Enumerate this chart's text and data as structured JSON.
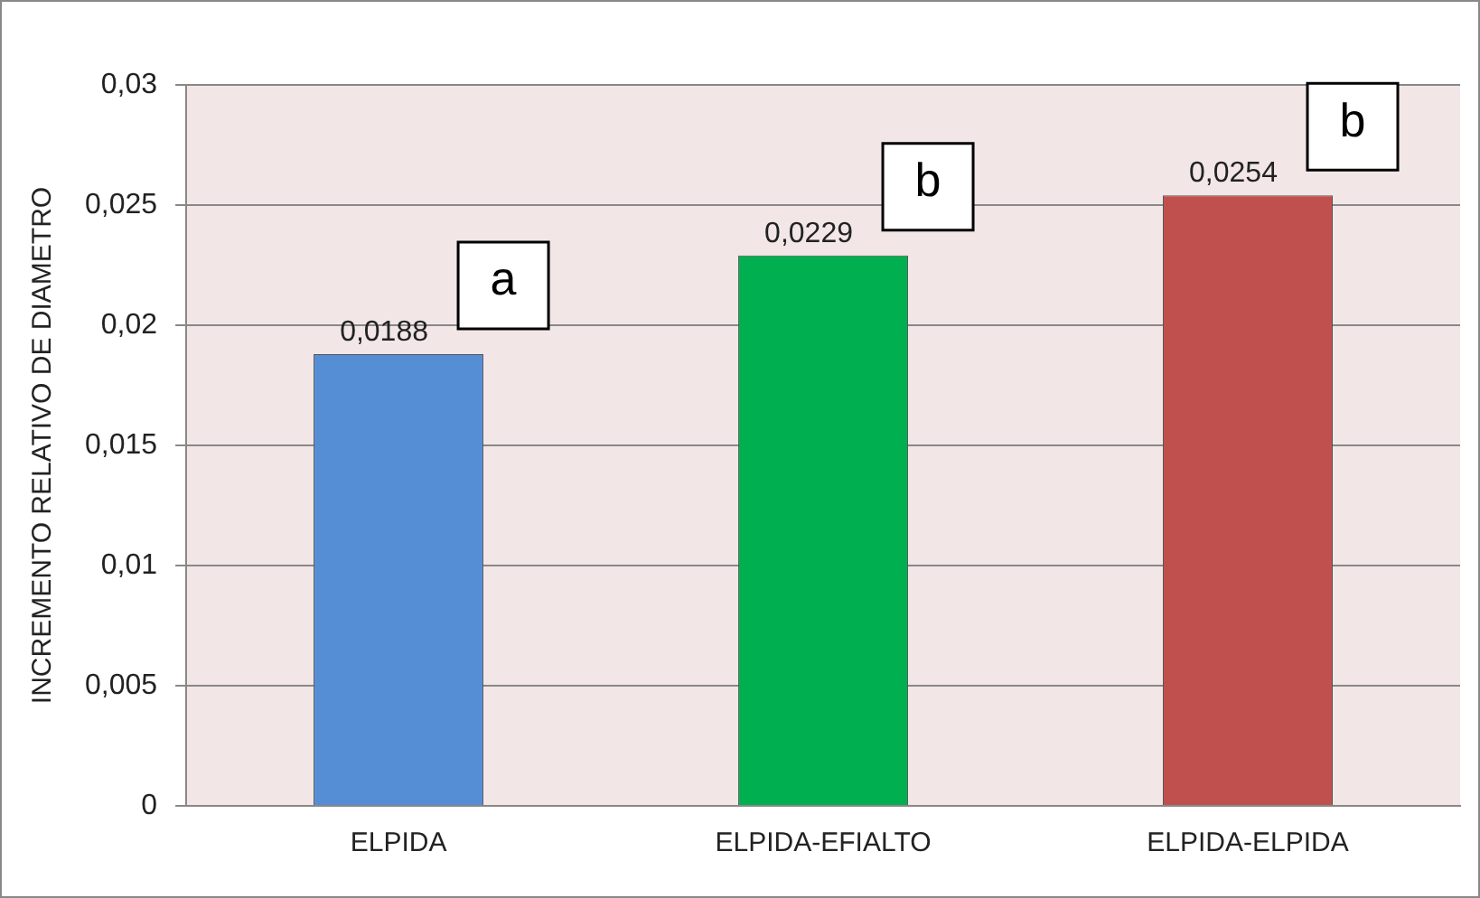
{
  "chart_data": {
    "type": "bar",
    "ylabel": "INCREMENTO RELATIVO DE DIAMETRO",
    "categories": [
      "ELPIDA",
      "ELPIDA-EFIALTO",
      "ELPIDA-ELPIDA"
    ],
    "values": [
      0.0188,
      0.0229,
      0.0254
    ],
    "colors": [
      "#558ed5",
      "#00b050",
      "#c0504d"
    ],
    "value_labels": [
      "0,0188",
      "0,0229",
      "0,0254"
    ],
    "ylim": [
      0,
      0.03
    ],
    "yticks": [
      {
        "value": 0,
        "label": "0"
      },
      {
        "value": 0.005,
        "label": "0,005"
      },
      {
        "value": 0.01,
        "label": "0,01"
      },
      {
        "value": 0.015,
        "label": "0,015"
      },
      {
        "value": 0.02,
        "label": "0,02"
      },
      {
        "value": 0.025,
        "label": "0,025"
      },
      {
        "value": 0.03,
        "label": "0,03"
      }
    ],
    "annotations": [
      {
        "text": "a",
        "x": "ELPIDA",
        "y": 0.0188
      },
      {
        "text": "b",
        "x": "ELPIDA-EFIALTO",
        "y": 0.0229
      },
      {
        "text": "b",
        "x": "ELPIDA-ELPIDA",
        "y": 0.0254
      }
    ],
    "grid": "y",
    "legend": false
  }
}
